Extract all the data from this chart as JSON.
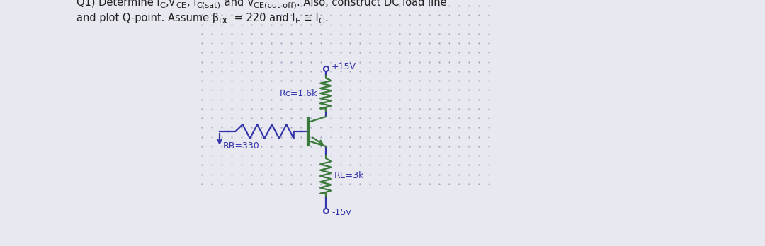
{
  "bg_color": "#e8e8f0",
  "panel_bg": "#ffffff",
  "dot_color": "#9999bb",
  "circuit_color": "#3a7a3a",
  "wire_color": "#3333aa",
  "text_color": "#3333aa",
  "title_color": "#222222",
  "vcc_label": "+15V",
  "vee_label": "-15v",
  "rc_label": "Rc=1.6k",
  "rb_label": "RB=330",
  "re_label": "RE=3k"
}
